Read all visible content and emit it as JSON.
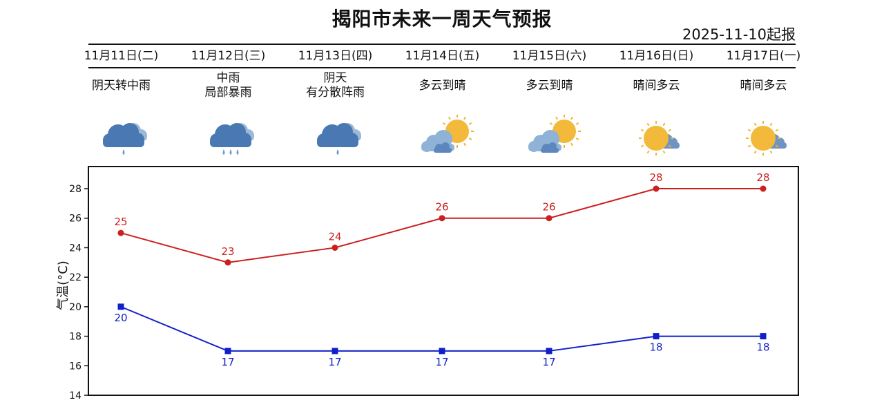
{
  "header": {
    "title": "揭阳市未来一周天气预报",
    "issued": "2025-11-10起报"
  },
  "days": [
    {
      "date": "11月11日(二)",
      "weather": [
        "阴天转中雨"
      ],
      "icon": "cloud-rain-icon"
    },
    {
      "date": "11月12日(三)",
      "weather": [
        "中雨",
        "局部暴雨"
      ],
      "icon": "cloud-heavy-rain-icon"
    },
    {
      "date": "11月13日(四)",
      "weather": [
        "阴天",
        "有分散阵雨"
      ],
      "icon": "cloud-rain-icon"
    },
    {
      "date": "11月14日(五)",
      "weather": [
        "多云到晴"
      ],
      "icon": "sun-behind-cloud-icon"
    },
    {
      "date": "11月15日(六)",
      "weather": [
        "多云到晴"
      ],
      "icon": "sun-behind-cloud-icon"
    },
    {
      "date": "11月16日(日)",
      "weather": [
        "晴间多云"
      ],
      "icon": "sun-with-cloud-icon"
    },
    {
      "date": "11月17日(一)",
      "weather": [
        "晴间多云"
      ],
      "icon": "sun-with-cloud-icon"
    }
  ],
  "chart_data": {
    "type": "line",
    "categories": [
      "11月11日(二)",
      "11月12日(三)",
      "11月13日(四)",
      "11月14日(五)",
      "11月15日(六)",
      "11月16日(日)",
      "11月17日(一)"
    ],
    "series": [
      {
        "values": [
          25,
          23,
          24,
          26,
          26,
          28,
          28
        ],
        "color": "#cc1f1f",
        "marker": "circle"
      },
      {
        "values": [
          20,
          17,
          17,
          17,
          17,
          18,
          18
        ],
        "color": "#1020c8",
        "marker": "square"
      }
    ],
    "ylabel": "气温(°C)",
    "ylim": [
      14,
      29.5
    ],
    "yticks": [
      14,
      16,
      18,
      20,
      22,
      24,
      26,
      28
    ],
    "grid": false
  }
}
